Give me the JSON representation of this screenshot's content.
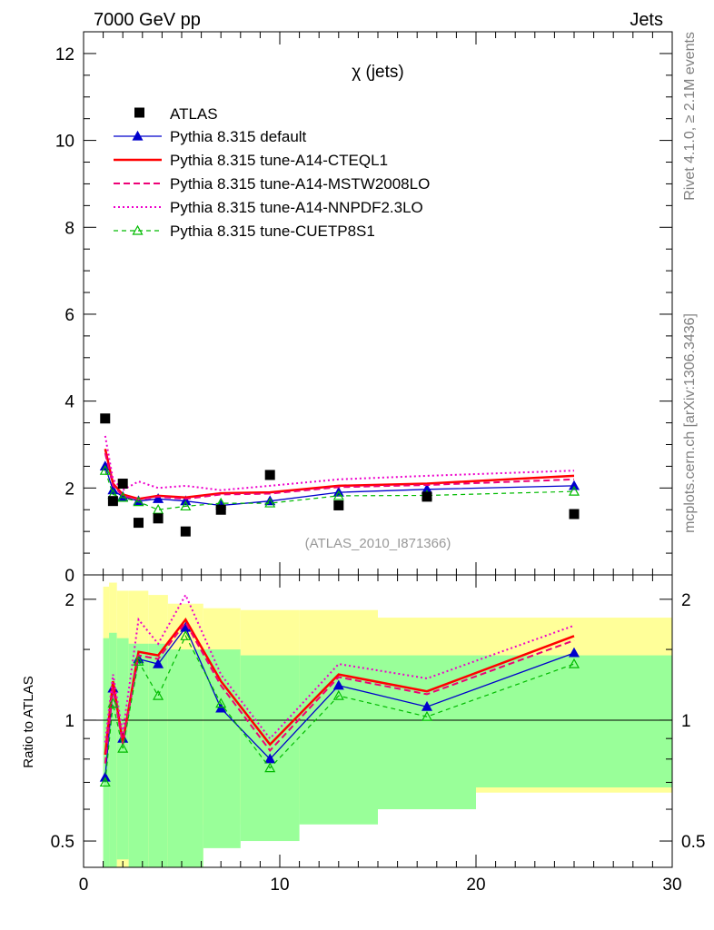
{
  "header": {
    "left": "7000 GeV pp",
    "right": "Jets"
  },
  "side_labels": {
    "rivet": "Rivet 4.1.0, ≥ 2.1M events",
    "mcplots": "mcplots.cern.ch [arXiv:1306.3436]"
  },
  "colors": {
    "green_band": "#99ff99",
    "yellow_band": "#ffff99",
    "atlas": "#000000",
    "default": "#0000cc",
    "cteql1": "#ff0000",
    "mstw": "#ee0077",
    "nnpdf": "#ee00cc",
    "cuetp8s1": "#00bb00"
  },
  "chart_data": [
    {
      "type": "line",
      "title": "χ (jets)",
      "watermark": "(ATLAS_2010_I871366)",
      "xlabel": "",
      "ylabel": "",
      "xlim": [
        0,
        30
      ],
      "ylim": [
        0,
        12.5
      ],
      "y_ticks": [
        0,
        2,
        4,
        6,
        8,
        10,
        12
      ],
      "legend_position": "top-left",
      "data": {
        "name": "ATLAS",
        "x": [
          1.1,
          1.5,
          2.0,
          2.8,
          3.8,
          5.2,
          7.0,
          9.5,
          13.0,
          17.5,
          25.0
        ],
        "y": [
          3.6,
          1.7,
          2.1,
          1.2,
          1.3,
          1.0,
          1.5,
          2.3,
          1.6,
          1.8,
          1.4
        ]
      },
      "series": [
        {
          "name": "Pythia 8.315 default",
          "color_key": "default",
          "style": "solid",
          "marker": "triangle-filled",
          "x": [
            1.1,
            1.5,
            2.0,
            2.8,
            3.8,
            5.2,
            7.0,
            9.5,
            13.0,
            17.5,
            25.0
          ],
          "y": [
            2.5,
            1.95,
            1.8,
            1.7,
            1.75,
            1.7,
            1.6,
            1.7,
            1.9,
            1.97,
            2.05
          ]
        },
        {
          "name": "Pythia 8.315 tune-A14-CTEQL1",
          "color_key": "cteql1",
          "style": "solid-thick",
          "marker": "none",
          "x": [
            1.1,
            1.5,
            2.0,
            2.8,
            3.8,
            5.2,
            7.0,
            9.5,
            13.0,
            17.5,
            25.0
          ],
          "y": [
            2.9,
            2.1,
            1.85,
            1.75,
            1.82,
            1.78,
            1.88,
            1.9,
            2.05,
            2.1,
            2.28
          ]
        },
        {
          "name": "Pythia 8.315 tune-A14-MSTW2008LO",
          "color_key": "mstw",
          "style": "dashed",
          "marker": "none",
          "x": [
            1.1,
            1.5,
            2.0,
            2.8,
            3.8,
            5.2,
            7.0,
            9.5,
            13.0,
            17.5,
            25.0
          ],
          "y": [
            2.8,
            2.05,
            1.82,
            1.73,
            1.8,
            1.75,
            1.85,
            1.87,
            2.02,
            2.07,
            2.2
          ]
        },
        {
          "name": "Pythia 8.315 tune-A14-NNPDF2.3LO",
          "color_key": "nnpdf",
          "style": "dotted",
          "marker": "none",
          "x": [
            1.1,
            1.5,
            2.0,
            2.8,
            3.8,
            5.2,
            7.0,
            9.5,
            13.0,
            17.5,
            25.0
          ],
          "y": [
            3.2,
            2.2,
            1.95,
            2.15,
            2.0,
            2.05,
            1.95,
            2.05,
            2.2,
            2.28,
            2.4
          ]
        },
        {
          "name": "Pythia 8.315 tune-CUETP8S1",
          "color_key": "cuetp8s1",
          "style": "dashed-thin",
          "marker": "triangle-open",
          "x": [
            1.1,
            1.5,
            2.0,
            2.8,
            3.8,
            5.2,
            7.0,
            9.5,
            13.0,
            17.5,
            25.0
          ],
          "y": [
            2.4,
            1.85,
            1.78,
            1.68,
            1.5,
            1.58,
            1.65,
            1.65,
            1.82,
            1.83,
            1.92
          ]
        }
      ]
    },
    {
      "type": "line",
      "title": "",
      "xlabel": "",
      "ylabel": "Ratio to ATLAS",
      "xlim": [
        0,
        30
      ],
      "ylim": [
        0.43,
        2.3
      ],
      "y_scale": "log",
      "y_ticks": [
        0.5,
        1,
        2
      ],
      "x_ticks": [
        0,
        10,
        20,
        30
      ],
      "reference_line": 1,
      "bands": {
        "edges": [
          1.0,
          1.3,
          1.7,
          2.3,
          3.3,
          4.3,
          6.1,
          8.0,
          11.0,
          15.0,
          20.0,
          30.0
        ],
        "green_hi": [
          1.6,
          1.65,
          1.6,
          1.55,
          1.55,
          1.5,
          1.5,
          1.45,
          1.45,
          1.45,
          1.45
        ],
        "green_lo": [
          0.4,
          0.33,
          0.45,
          0.38,
          0.43,
          0.42,
          0.48,
          0.5,
          0.55,
          0.6,
          0.68
        ],
        "yellow_hi": [
          2.15,
          2.2,
          2.1,
          2.1,
          2.05,
          1.95,
          1.9,
          1.88,
          1.88,
          1.8,
          1.8
        ],
        "yellow_lo": [
          0.43,
          0.43,
          0.43,
          0.43,
          0.43,
          0.43,
          0.55,
          0.58,
          0.6,
          0.63,
          0.66
        ]
      },
      "series": [
        {
          "name": "Pythia 8.315 default",
          "color_key": "default",
          "style": "solid",
          "marker": "triangle-filled",
          "x": [
            1.1,
            1.5,
            2.0,
            2.8,
            3.8,
            5.2,
            7.0,
            9.5,
            13.0,
            17.5,
            25.0
          ],
          "y": [
            0.72,
            1.2,
            0.9,
            1.42,
            1.38,
            1.7,
            1.07,
            0.8,
            1.22,
            1.08,
            1.47
          ]
        },
        {
          "name": "Pythia 8.315 tune-A14-CTEQL1",
          "color_key": "cteql1",
          "style": "solid-thick",
          "marker": "none",
          "x": [
            1.1,
            1.5,
            2.0,
            2.8,
            3.8,
            5.2,
            7.0,
            9.5,
            13.0,
            17.5,
            25.0
          ],
          "y": [
            0.82,
            1.25,
            0.88,
            1.48,
            1.45,
            1.78,
            1.25,
            0.87,
            1.3,
            1.18,
            1.62
          ]
        },
        {
          "name": "Pythia 8.315 tune-A14-MSTW2008LO",
          "color_key": "mstw",
          "style": "dashed",
          "marker": "none",
          "x": [
            1.1,
            1.5,
            2.0,
            2.8,
            3.8,
            5.2,
            7.0,
            9.5,
            13.0,
            17.5,
            25.0
          ],
          "y": [
            0.78,
            1.2,
            0.87,
            1.45,
            1.42,
            1.75,
            1.22,
            0.84,
            1.28,
            1.16,
            1.58
          ]
        },
        {
          "name": "Pythia 8.315 tune-A14-NNPDF2.3LO",
          "color_key": "nnpdf",
          "style": "dotted",
          "marker": "none",
          "x": [
            1.1,
            1.5,
            2.0,
            2.8,
            3.8,
            5.2,
            7.0,
            9.5,
            13.0,
            17.5,
            25.0
          ],
          "y": [
            0.88,
            1.3,
            0.93,
            1.78,
            1.55,
            2.05,
            1.3,
            0.9,
            1.38,
            1.27,
            1.72
          ]
        },
        {
          "name": "Pythia 8.315 tune-CUETP8S1",
          "color_key": "cuetp8s1",
          "style": "dashed-thin",
          "marker": "triangle-open",
          "x": [
            1.1,
            1.5,
            2.0,
            2.8,
            3.8,
            5.2,
            7.0,
            9.5,
            13.0,
            17.5,
            25.0
          ],
          "y": [
            0.7,
            1.1,
            0.85,
            1.4,
            1.15,
            1.62,
            1.1,
            0.76,
            1.15,
            1.02,
            1.38
          ]
        }
      ]
    }
  ]
}
